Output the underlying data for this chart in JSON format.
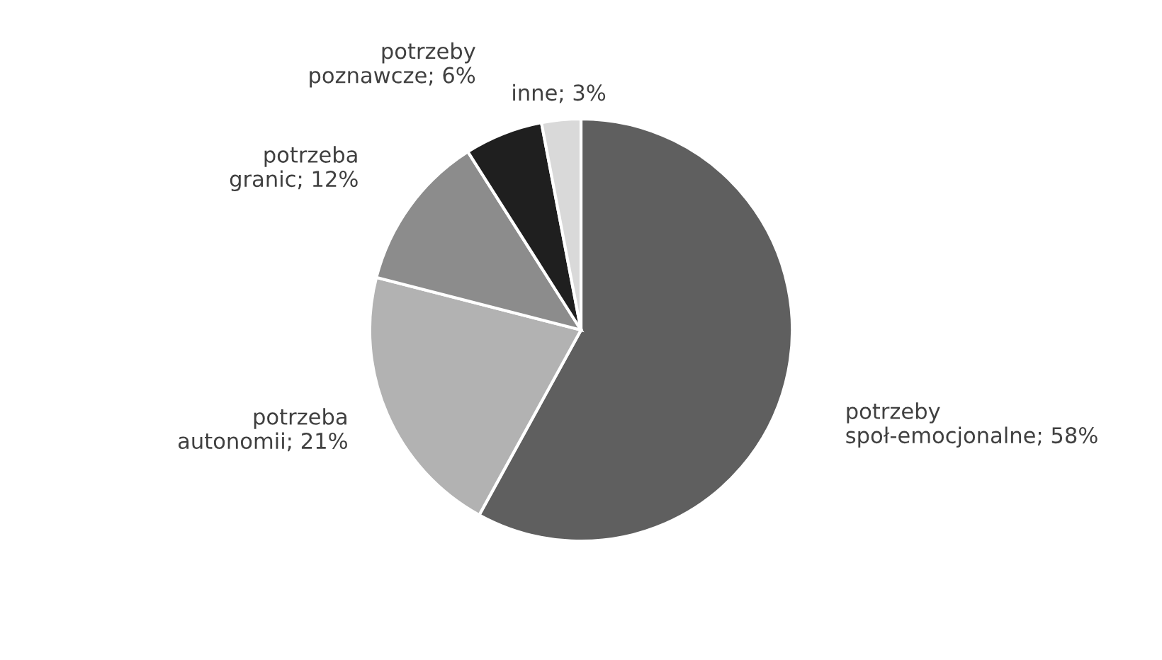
{
  "chart_data": {
    "type": "pie",
    "categories": [
      "potrzeby społ-emocjonalne",
      "potrzeba autonomii",
      "potrzeba granic",
      "potrzeby poznawcze",
      "inne"
    ],
    "values": [
      58,
      21,
      12,
      6,
      3
    ],
    "value_labels": [
      "58%",
      "21%",
      "12%",
      "6%",
      "3%"
    ],
    "colors": [
      "#5f5f5f",
      "#b2b2b2",
      "#8c8c8c",
      "#1f1f1f",
      "#d9d9d9"
    ],
    "legend": false
  }
}
